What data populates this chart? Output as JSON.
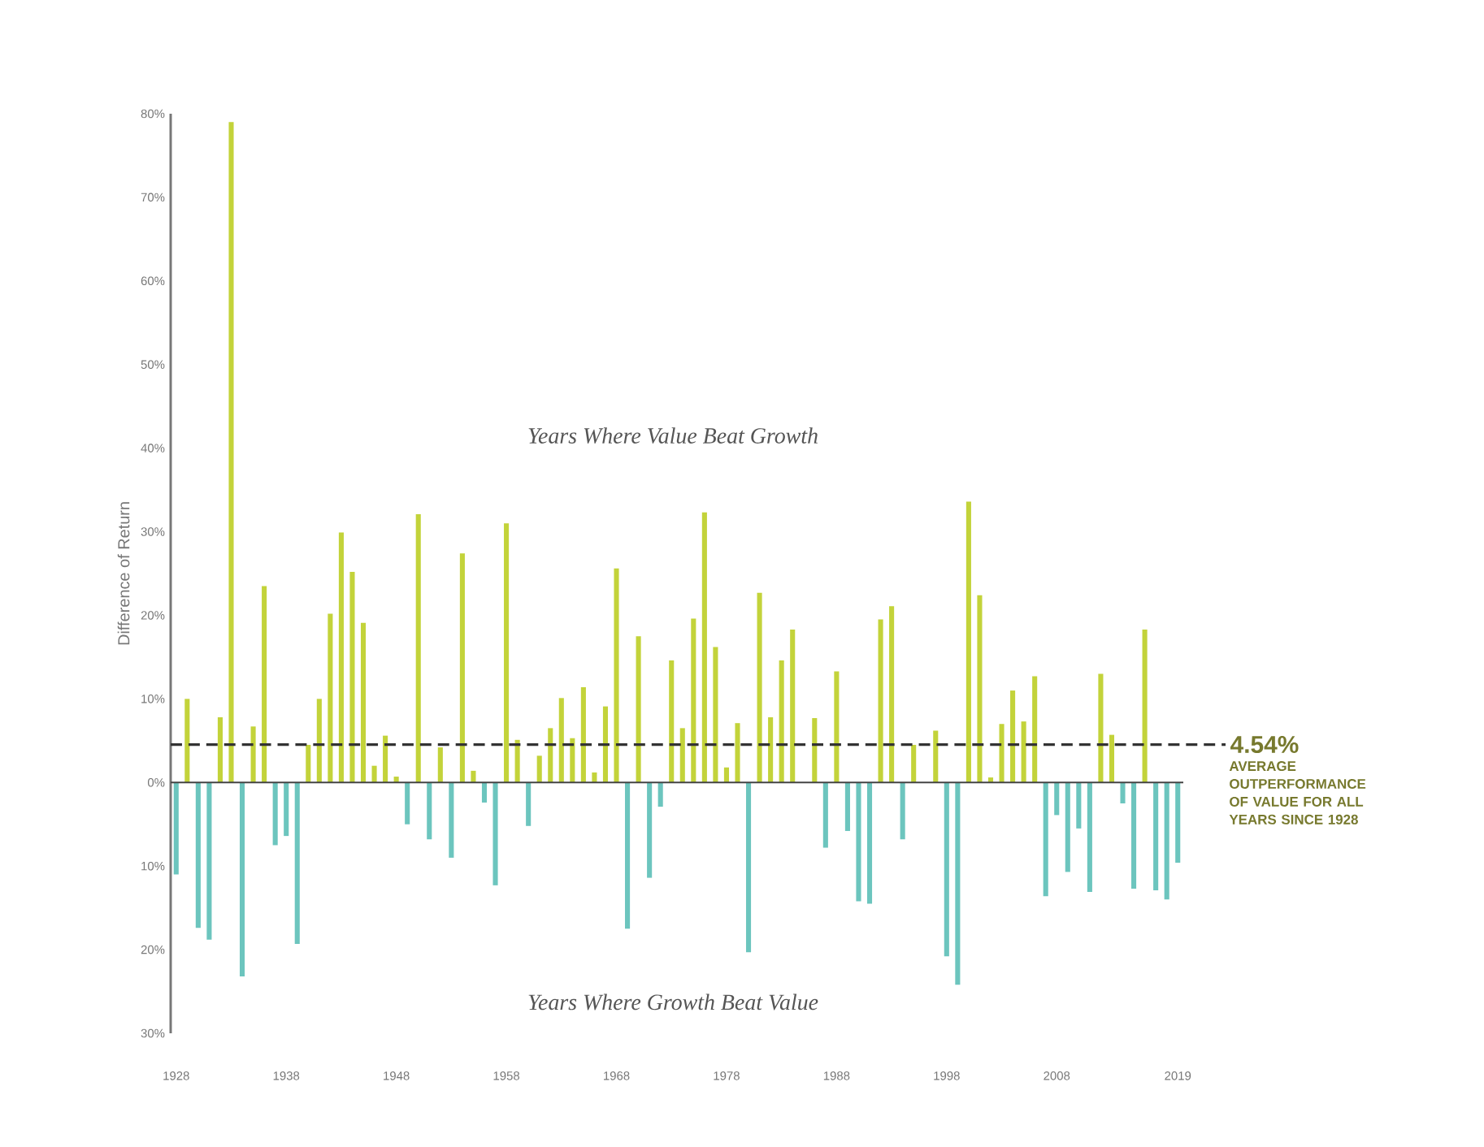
{
  "chart_data": {
    "type": "bar",
    "ylabel": "Difference of Return",
    "categories": [
      "1928",
      null,
      null,
      null,
      null,
      null,
      null,
      null,
      null,
      null,
      "1938",
      null,
      null,
      null,
      null,
      null,
      null,
      null,
      null,
      null,
      "1948",
      null,
      null,
      null,
      null,
      null,
      null,
      null,
      null,
      null,
      "1958",
      null,
      null,
      null,
      null,
      null,
      null,
      null,
      null,
      null,
      "1968",
      null,
      null,
      null,
      null,
      null,
      null,
      null,
      null,
      null,
      "1978",
      null,
      null,
      null,
      null,
      null,
      null,
      null,
      null,
      null,
      "1988",
      null,
      null,
      null,
      null,
      null,
      null,
      null,
      null,
      null,
      "1998",
      null,
      null,
      null,
      null,
      null,
      null,
      null,
      null,
      null,
      "2008",
      null,
      null,
      null,
      null,
      null,
      null,
      null,
      null,
      null,
      null,
      "2019"
    ],
    "values": [
      -11,
      10,
      -17.4,
      -18.8,
      7.8,
      79,
      -23.2,
      6.7,
      23.5,
      -7.5,
      -6.4,
      -19.3,
      4.5,
      10,
      20.2,
      29.9,
      25.2,
      19.1,
      2,
      5.6,
      0.7,
      -5,
      32.1,
      -6.8,
      4.2,
      -9,
      27.4,
      1.4,
      -2.4,
      -12.3,
      31,
      5.1,
      -5.2,
      3.2,
      6.5,
      10.1,
      5.3,
      11.4,
      1.2,
      9.1,
      25.6,
      -17.5,
      17.5,
      -11.4,
      -2.9,
      14.6,
      6.5,
      19.6,
      32.3,
      16.2,
      1.8,
      7.1,
      -20.3,
      22.7,
      7.8,
      14.6,
      18.3,
      0,
      7.7,
      -7.8,
      13.3,
      -5.8,
      -14.2,
      -14.5,
      19.5,
      21.1,
      -6.8,
      4.5,
      0,
      6.2,
      -20.8,
      -24.2,
      33.6,
      22.4,
      0.6,
      7,
      11,
      7.3,
      12.7,
      -13.6,
      -3.9,
      -10.7,
      -5.5,
      -13.1,
      13,
      5.7,
      -2.5,
      -12.7,
      18.3,
      -12.9,
      -14,
      -9.6
    ],
    "colors": [
      "#6cc5be",
      "#c3d33a",
      "#6cc5be",
      "#6cc5be",
      "#c3d33a",
      "#c3d33a",
      "#6cc5be",
      "#c3d33a",
      "#c3d33a",
      "#6cc5be",
      "#6cc5be",
      "#6cc5be",
      "#c3d33a",
      "#c3d33a",
      "#c3d33a",
      "#c3d33a",
      "#c3d33a",
      "#c3d33a",
      "#c3d33a",
      "#c3d33a",
      "#c3d33a",
      "#6cc5be",
      "#c3d33a",
      "#6cc5be",
      "#c3d33a",
      "#6cc5be",
      "#c3d33a",
      "#c3d33a",
      "#6cc5be",
      "#6cc5be",
      "#c3d33a",
      "#c3d33a",
      "#6cc5be",
      "#c3d33a",
      "#c3d33a",
      "#c3d33a",
      "#c3d33a",
      "#c3d33a",
      "#c3d33a",
      "#c3d33a",
      "#c3d33a",
      "#6cc5be",
      "#c3d33a",
      "#6cc5be",
      "#6cc5be",
      "#c3d33a",
      "#c3d33a",
      "#c3d33a",
      "#c3d33a",
      "#c3d33a",
      "#c3d33a",
      "#c3d33a",
      "#6cc5be",
      "#c3d33a",
      "#c3d33a",
      "#c3d33a",
      "#c3d33a",
      "#c3d33a",
      "#c3d33a",
      "#6cc5be",
      "#c3d33a",
      "#6cc5be",
      "#6cc5be",
      "#6cc5be",
      "#c3d33a",
      "#c3d33a",
      "#6cc5be",
      "#c3d33a",
      "#c3d33a",
      "#c3d33a",
      "#6cc5be",
      "#6cc5be",
      "#c3d33a",
      "#c3d33a",
      "#c3d33a",
      "#c3d33a",
      "#c3d33a",
      "#c3d33a",
      "#c3d33a",
      "#6cc5be",
      "#6cc5be",
      "#6cc5be",
      "#6cc5be",
      "#6cc5be",
      "#c3d33a",
      "#c3d33a",
      "#6cc5be",
      "#6cc5be",
      "#c3d33a",
      "#6cc5be",
      "#6cc5be",
      "#6cc5be"
    ],
    "ylim": [
      -30,
      80
    ],
    "yticks": [
      {
        "value": -30,
        "label": "30%"
      },
      {
        "value": -20,
        "label": "20%"
      },
      {
        "value": -10,
        "label": "10%"
      },
      {
        "value": 0,
        "label": "0%"
      },
      {
        "value": 10,
        "label": "10%"
      },
      {
        "value": 20,
        "label": "20%"
      },
      {
        "value": 30,
        "label": "30%"
      },
      {
        "value": 40,
        "label": "40%"
      },
      {
        "value": 50,
        "label": "50%"
      },
      {
        "value": 60,
        "label": "60%"
      },
      {
        "value": 70,
        "label": "70%"
      },
      {
        "value": 80,
        "label": "80%"
      }
    ],
    "ref_lines": [
      {
        "axis": "y",
        "value": 4.54,
        "label": "4.54%",
        "color": "#333333",
        "line_style": "dashed"
      }
    ],
    "annotations": [
      "Years Where Value Beat Growth",
      "Years Where Growth Beat Value",
      "AVERAGE OUTPERFORMANCE OF VALUE FOR ALL YEARS SINCE 1928"
    ]
  }
}
